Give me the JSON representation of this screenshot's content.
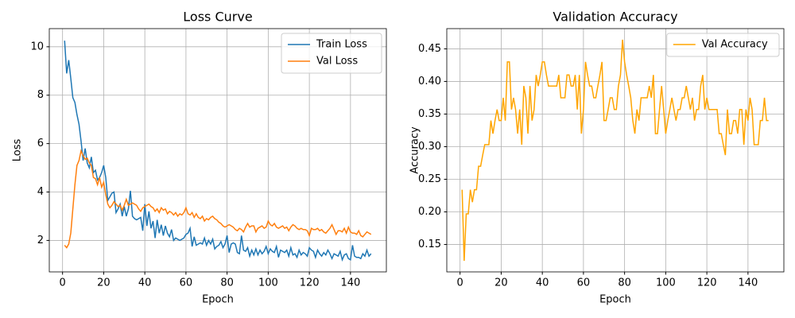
{
  "chart_data": [
    {
      "type": "line",
      "title": "Loss Curve",
      "xlabel": "Epoch",
      "ylabel": "Loss",
      "x": [
        1,
        2,
        3,
        4,
        5,
        6,
        7,
        8,
        9,
        10,
        11,
        12,
        13,
        14,
        15,
        16,
        17,
        18,
        19,
        20,
        21,
        22,
        23,
        24,
        25,
        26,
        27,
        28,
        29,
        30,
        31,
        32,
        33,
        34,
        35,
        36,
        37,
        38,
        39,
        40,
        41,
        42,
        43,
        44,
        45,
        46,
        47,
        48,
        49,
        50,
        51,
        52,
        53,
        54,
        55,
        56,
        57,
        58,
        59,
        60,
        61,
        62,
        63,
        64,
        65,
        66,
        67,
        68,
        69,
        70,
        71,
        72,
        73,
        74,
        75,
        76,
        77,
        78,
        79,
        80,
        81,
        82,
        83,
        84,
        85,
        86,
        87,
        88,
        89,
        90,
        91,
        92,
        93,
        94,
        95,
        96,
        97,
        98,
        99,
        100,
        101,
        102,
        103,
        104,
        105,
        106,
        107,
        108,
        109,
        110,
        111,
        112,
        113,
        114,
        115,
        116,
        117,
        118,
        119,
        120,
        121,
        122,
        123,
        124,
        125,
        126,
        127,
        128,
        129,
        130,
        131,
        132,
        133,
        134,
        135,
        136,
        137,
        138,
        139,
        140,
        141,
        142,
        143,
        144,
        145,
        146,
        147,
        148,
        149,
        150
      ],
      "series": [
        {
          "name": "Train Loss",
          "color": "#1f77b4",
          "values": [
            10.25,
            8.9,
            9.45,
            8.7,
            7.9,
            7.7,
            7.2,
            6.8,
            6.1,
            5.3,
            5.8,
            5.2,
            5.0,
            5.45,
            4.8,
            4.9,
            4.5,
            4.6,
            4.8,
            5.1,
            4.6,
            3.65,
            3.8,
            3.95,
            4.0,
            3.15,
            3.3,
            3.5,
            3.0,
            3.4,
            3.0,
            3.3,
            4.05,
            3.0,
            2.9,
            2.85,
            2.9,
            2.95,
            2.4,
            3.5,
            2.6,
            3.2,
            2.5,
            2.8,
            2.1,
            2.85,
            2.3,
            2.65,
            2.2,
            2.6,
            2.3,
            2.15,
            2.45,
            2.0,
            2.1,
            2.05,
            2.0,
            2.05,
            2.1,
            2.25,
            2.3,
            2.5,
            1.75,
            2.15,
            1.8,
            1.85,
            1.9,
            1.85,
            2.1,
            1.8,
            2.0,
            1.85,
            2.05,
            1.65,
            1.75,
            1.8,
            1.95,
            1.7,
            1.85,
            2.2,
            1.5,
            1.85,
            1.9,
            1.85,
            1.5,
            1.45,
            2.2,
            1.6,
            1.55,
            1.7,
            1.35,
            1.6,
            1.4,
            1.65,
            1.4,
            1.6,
            1.45,
            1.55,
            1.75,
            1.45,
            1.65,
            1.55,
            1.5,
            1.75,
            1.3,
            1.6,
            1.55,
            1.5,
            1.6,
            1.35,
            1.7,
            1.4,
            1.45,
            1.3,
            1.6,
            1.4,
            1.5,
            1.45,
            1.35,
            1.7,
            1.6,
            1.55,
            1.3,
            1.6,
            1.45,
            1.35,
            1.5,
            1.4,
            1.6,
            1.45,
            1.25,
            1.45,
            1.4,
            1.35,
            1.55,
            1.2,
            1.4,
            1.45,
            1.25,
            1.2,
            1.8,
            1.35,
            1.3,
            1.3,
            1.25,
            1.45,
            1.35,
            1.6,
            1.35,
            1.45
          ]
        },
        {
          "name": "Val Loss",
          "color": "#ff7f0e",
          "values": [
            1.8,
            1.7,
            1.85,
            2.3,
            3.3,
            4.3,
            5.1,
            5.3,
            5.7,
            5.5,
            5.35,
            5.4,
            5.2,
            5.1,
            4.6,
            4.55,
            4.3,
            4.6,
            4.2,
            4.4,
            3.9,
            3.5,
            3.35,
            3.45,
            3.6,
            3.5,
            3.4,
            3.45,
            3.25,
            3.45,
            3.7,
            3.45,
            3.5,
            3.55,
            3.5,
            3.45,
            3.3,
            3.2,
            3.35,
            3.4,
            3.45,
            3.5,
            3.4,
            3.35,
            3.2,
            3.3,
            3.15,
            3.35,
            3.25,
            3.3,
            3.1,
            3.2,
            3.15,
            3.05,
            3.15,
            3.0,
            3.1,
            3.05,
            3.15,
            3.35,
            3.1,
            3.05,
            3.15,
            2.95,
            3.1,
            2.95,
            2.9,
            3.0,
            2.8,
            2.9,
            2.85,
            2.95,
            3.0,
            2.9,
            2.85,
            2.75,
            2.7,
            2.6,
            2.55,
            2.6,
            2.65,
            2.6,
            2.55,
            2.45,
            2.4,
            2.5,
            2.45,
            2.35,
            2.55,
            2.7,
            2.55,
            2.6,
            2.6,
            2.35,
            2.5,
            2.55,
            2.6,
            2.5,
            2.55,
            2.8,
            2.65,
            2.6,
            2.7,
            2.55,
            2.5,
            2.55,
            2.6,
            2.5,
            2.55,
            2.4,
            2.55,
            2.65,
            2.6,
            2.5,
            2.45,
            2.5,
            2.45,
            2.45,
            2.4,
            2.2,
            2.5,
            2.45,
            2.45,
            2.5,
            2.4,
            2.45,
            2.35,
            2.3,
            2.4,
            2.5,
            2.65,
            2.45,
            2.25,
            2.4,
            2.4,
            2.35,
            2.5,
            2.3,
            2.55,
            2.35,
            2.3,
            2.3,
            2.25,
            2.4,
            2.2,
            2.15,
            2.25,
            2.35,
            2.3,
            2.25
          ]
        }
      ],
      "xlim": [
        -6.45,
        157.45
      ],
      "xticks": [
        0,
        20,
        40,
        60,
        80,
        100,
        120,
        140
      ],
      "ylim": [
        0.7,
        10.75
      ],
      "yticks": [
        2,
        4,
        6,
        8,
        10
      ],
      "grid": true,
      "legend": "upper right"
    },
    {
      "type": "line",
      "title": "Validation Accuracy",
      "xlabel": "Epoch",
      "ylabel": "Accuracy",
      "x": [
        1,
        2,
        3,
        4,
        5,
        6,
        7,
        8,
        9,
        10,
        11,
        12,
        13,
        14,
        15,
        16,
        17,
        18,
        19,
        20,
        21,
        22,
        23,
        24,
        25,
        26,
        27,
        28,
        29,
        30,
        31,
        32,
        33,
        34,
        35,
        36,
        37,
        38,
        39,
        40,
        41,
        42,
        43,
        44,
        45,
        46,
        47,
        48,
        49,
        50,
        51,
        52,
        53,
        54,
        55,
        56,
        57,
        58,
        59,
        60,
        61,
        62,
        63,
        64,
        65,
        66,
        67,
        68,
        69,
        70,
        71,
        72,
        73,
        74,
        75,
        76,
        77,
        78,
        79,
        80,
        81,
        82,
        83,
        84,
        85,
        86,
        87,
        88,
        89,
        90,
        91,
        92,
        93,
        94,
        95,
        96,
        97,
        98,
        99,
        100,
        101,
        102,
        103,
        104,
        105,
        106,
        107,
        108,
        109,
        110,
        111,
        112,
        113,
        114,
        115,
        116,
        117,
        118,
        119,
        120,
        121,
        122,
        123,
        124,
        125,
        126,
        127,
        128,
        129,
        130,
        131,
        132,
        133,
        134,
        135,
        136,
        137,
        138,
        139,
        140,
        141,
        142,
        143,
        144,
        145,
        146,
        147,
        148,
        149,
        150
      ],
      "series": [
        {
          "name": "Val Accuracy",
          "color": "#ffa500",
          "values": [
            0.234,
            0.125,
            0.197,
            0.197,
            0.234,
            0.215,
            0.234,
            0.234,
            0.27,
            0.27,
            0.287,
            0.303,
            0.303,
            0.303,
            0.34,
            0.32,
            0.34,
            0.357,
            0.34,
            0.34,
            0.375,
            0.34,
            0.43,
            0.43,
            0.357,
            0.375,
            0.357,
            0.32,
            0.357,
            0.303,
            0.393,
            0.375,
            0.32,
            0.393,
            0.34,
            0.357,
            0.41,
            0.393,
            0.41,
            0.43,
            0.43,
            0.41,
            0.393,
            0.393,
            0.393,
            0.393,
            0.393,
            0.41,
            0.375,
            0.375,
            0.375,
            0.41,
            0.41,
            0.393,
            0.393,
            0.41,
            0.357,
            0.41,
            0.32,
            0.357,
            0.43,
            0.41,
            0.393,
            0.393,
            0.375,
            0.375,
            0.393,
            0.41,
            0.43,
            0.34,
            0.34,
            0.357,
            0.375,
            0.375,
            0.357,
            0.357,
            0.393,
            0.41,
            0.464,
            0.43,
            0.41,
            0.393,
            0.375,
            0.34,
            0.32,
            0.357,
            0.34,
            0.375,
            0.375,
            0.375,
            0.375,
            0.393,
            0.375,
            0.41,
            0.32,
            0.32,
            0.357,
            0.393,
            0.357,
            0.32,
            0.34,
            0.357,
            0.375,
            0.357,
            0.34,
            0.357,
            0.357,
            0.375,
            0.375,
            0.393,
            0.375,
            0.357,
            0.375,
            0.34,
            0.357,
            0.357,
            0.393,
            0.41,
            0.357,
            0.375,
            0.357,
            0.357,
            0.357,
            0.357,
            0.357,
            0.32,
            0.32,
            0.303,
            0.287,
            0.357,
            0.32,
            0.32,
            0.34,
            0.34,
            0.32,
            0.357,
            0.357,
            0.303,
            0.357,
            0.34,
            0.375,
            0.357,
            0.303,
            0.303,
            0.303,
            0.34,
            0.34,
            0.375,
            0.34,
            0.34
          ]
        }
      ],
      "xlim": [
        -6.45,
        157.45
      ],
      "xticks": [
        0,
        20,
        40,
        60,
        80,
        100,
        120,
        140
      ],
      "ylim": [
        0.108,
        0.481
      ],
      "yticks": [
        0.15,
        {
          "value": 0.2,
          "label": "0.20"
        },
        0.25,
        {
          "value": 0.3,
          "label": "0.30"
        },
        0.35,
        {
          "value": 0.4,
          "label": "0.40"
        },
        0.45
      ],
      "grid": true,
      "legend": "upper right"
    }
  ]
}
